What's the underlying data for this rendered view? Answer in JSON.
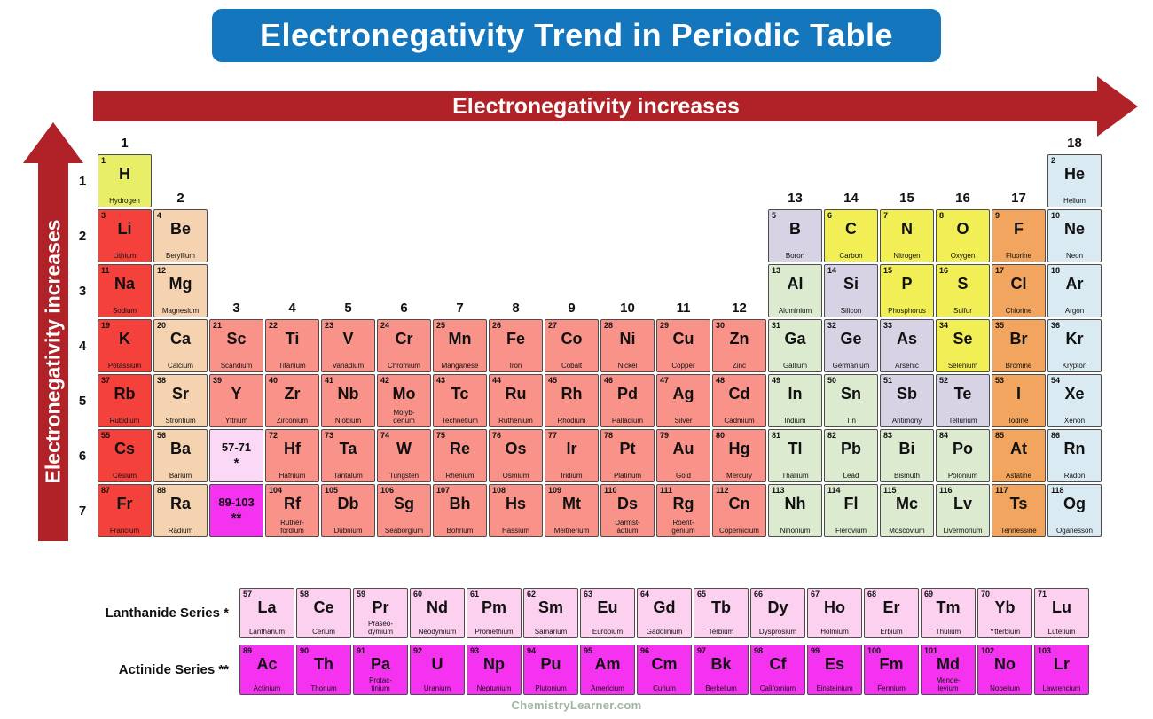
{
  "title": "Electronegativity Trend in Periodic Table",
  "arrows": {
    "horizontal": "Electronegativity increases",
    "vertical": "Electronegativity increases"
  },
  "footer": "ChemistryLearner.com",
  "series_labels": {
    "lanthanide": "Lanthanide Series *",
    "actinide": "Actinide Series **"
  },
  "colors": {
    "title_bg": "#1477bd",
    "arrow": "#b02128",
    "hydrogen": "#e8ee67",
    "alkali": "#f5413c",
    "alkaline": "#f6d3b0",
    "transition": "#f9938a",
    "post": "#dcead0",
    "metalloid": "#d7d2e4",
    "nonmetal": "#f1ef55",
    "halogen": "#f1a55e",
    "noble": "#d9eaf2",
    "lanthanide": "#fbd1ef",
    "actinide": "#f532f0",
    "placeholder_lan": "#fbd9f6",
    "placeholder_act": "#f532f0"
  },
  "period_labels": [
    "1",
    "2",
    "3",
    "4",
    "5",
    "6",
    "7"
  ],
  "group_labels": [
    {
      "label": "1",
      "row": 0,
      "col": 1
    },
    {
      "label": "2",
      "row": 1,
      "col": 2
    },
    {
      "label": "3",
      "row": 3,
      "col": 3
    },
    {
      "label": "4",
      "row": 3,
      "col": 4
    },
    {
      "label": "5",
      "row": 3,
      "col": 5
    },
    {
      "label": "6",
      "row": 3,
      "col": 6
    },
    {
      "label": "7",
      "row": 3,
      "col": 7
    },
    {
      "label": "8",
      "row": 3,
      "col": 8
    },
    {
      "label": "9",
      "row": 3,
      "col": 9
    },
    {
      "label": "10",
      "row": 3,
      "col": 10
    },
    {
      "label": "11",
      "row": 3,
      "col": 11
    },
    {
      "label": "12",
      "row": 3,
      "col": 12
    },
    {
      "label": "13",
      "row": 1,
      "col": 13
    },
    {
      "label": "14",
      "row": 1,
      "col": 14
    },
    {
      "label": "15",
      "row": 1,
      "col": 15
    },
    {
      "label": "16",
      "row": 1,
      "col": 16
    },
    {
      "label": "17",
      "row": 1,
      "col": 17
    },
    {
      "label": "18",
      "row": 0,
      "col": 18
    }
  ],
  "placeholders": [
    {
      "label": "57-71",
      "mark": "*",
      "r": 6,
      "c": 3,
      "cat": "placeholder_lan"
    },
    {
      "label": "89-103",
      "mark": "**",
      "r": 7,
      "c": 3,
      "cat": "placeholder_act"
    }
  ],
  "elements": [
    {
      "n": 1,
      "s": "H",
      "name": "Hydrogen",
      "r": 1,
      "c": 1,
      "cat": "hydrogen"
    },
    {
      "n": 2,
      "s": "He",
      "name": "Helium",
      "r": 1,
      "c": 18,
      "cat": "noble"
    },
    {
      "n": 3,
      "s": "Li",
      "name": "Lithium",
      "r": 2,
      "c": 1,
      "cat": "alkali"
    },
    {
      "n": 4,
      "s": "Be",
      "name": "Beryllium",
      "r": 2,
      "c": 2,
      "cat": "alkaline"
    },
    {
      "n": 5,
      "s": "B",
      "name": "Boron",
      "r": 2,
      "c": 13,
      "cat": "metalloid"
    },
    {
      "n": 6,
      "s": "C",
      "name": "Carbon",
      "r": 2,
      "c": 14,
      "cat": "nonmetal"
    },
    {
      "n": 7,
      "s": "N",
      "name": "Nitrogen",
      "r": 2,
      "c": 15,
      "cat": "nonmetal"
    },
    {
      "n": 8,
      "s": "O",
      "name": "Oxygen",
      "r": 2,
      "c": 16,
      "cat": "nonmetal"
    },
    {
      "n": 9,
      "s": "F",
      "name": "Fluorine",
      "r": 2,
      "c": 17,
      "cat": "halogen"
    },
    {
      "n": 10,
      "s": "Ne",
      "name": "Neon",
      "r": 2,
      "c": 18,
      "cat": "noble"
    },
    {
      "n": 11,
      "s": "Na",
      "name": "Sodium",
      "r": 3,
      "c": 1,
      "cat": "alkali"
    },
    {
      "n": 12,
      "s": "Mg",
      "name": "Magnesium",
      "r": 3,
      "c": 2,
      "cat": "alkaline"
    },
    {
      "n": 13,
      "s": "Al",
      "name": "Aluminium",
      "r": 3,
      "c": 13,
      "cat": "post"
    },
    {
      "n": 14,
      "s": "Si",
      "name": "Silicon",
      "r": 3,
      "c": 14,
      "cat": "metalloid"
    },
    {
      "n": 15,
      "s": "P",
      "name": "Phosphorus",
      "r": 3,
      "c": 15,
      "cat": "nonmetal"
    },
    {
      "n": 16,
      "s": "S",
      "name": "Sulfur",
      "r": 3,
      "c": 16,
      "cat": "nonmetal"
    },
    {
      "n": 17,
      "s": "Cl",
      "name": "Chlorine",
      "r": 3,
      "c": 17,
      "cat": "halogen"
    },
    {
      "n": 18,
      "s": "Ar",
      "name": "Argon",
      "r": 3,
      "c": 18,
      "cat": "noble"
    },
    {
      "n": 19,
      "s": "K",
      "name": "Potassium",
      "r": 4,
      "c": 1,
      "cat": "alkali"
    },
    {
      "n": 20,
      "s": "Ca",
      "name": "Calcium",
      "r": 4,
      "c": 2,
      "cat": "alkaline"
    },
    {
      "n": 21,
      "s": "Sc",
      "name": "Scandium",
      "r": 4,
      "c": 3,
      "cat": "transition"
    },
    {
      "n": 22,
      "s": "Ti",
      "name": "Titanium",
      "r": 4,
      "c": 4,
      "cat": "transition"
    },
    {
      "n": 23,
      "s": "V",
      "name": "Vanadium",
      "r": 4,
      "c": 5,
      "cat": "transition"
    },
    {
      "n": 24,
      "s": "Cr",
      "name": "Chromium",
      "r": 4,
      "c": 6,
      "cat": "transition"
    },
    {
      "n": 25,
      "s": "Mn",
      "name": "Manganese",
      "r": 4,
      "c": 7,
      "cat": "transition"
    },
    {
      "n": 26,
      "s": "Fe",
      "name": "Iron",
      "r": 4,
      "c": 8,
      "cat": "transition"
    },
    {
      "n": 27,
      "s": "Co",
      "name": "Cobalt",
      "r": 4,
      "c": 9,
      "cat": "transition"
    },
    {
      "n": 28,
      "s": "Ni",
      "name": "Nickel",
      "r": 4,
      "c": 10,
      "cat": "transition"
    },
    {
      "n": 29,
      "s": "Cu",
      "name": "Copper",
      "r": 4,
      "c": 11,
      "cat": "transition"
    },
    {
      "n": 30,
      "s": "Zn",
      "name": "Zinc",
      "r": 4,
      "c": 12,
      "cat": "transition"
    },
    {
      "n": 31,
      "s": "Ga",
      "name": "Gallium",
      "r": 4,
      "c": 13,
      "cat": "post"
    },
    {
      "n": 32,
      "s": "Ge",
      "name": "Germanium",
      "r": 4,
      "c": 14,
      "cat": "metalloid"
    },
    {
      "n": 33,
      "s": "As",
      "name": "Arsenic",
      "r": 4,
      "c": 15,
      "cat": "metalloid"
    },
    {
      "n": 34,
      "s": "Se",
      "name": "Selenium",
      "r": 4,
      "c": 16,
      "cat": "nonmetal"
    },
    {
      "n": 35,
      "s": "Br",
      "name": "Bromine",
      "r": 4,
      "c": 17,
      "cat": "halogen"
    },
    {
      "n": 36,
      "s": "Kr",
      "name": "Krypton",
      "r": 4,
      "c": 18,
      "cat": "noble"
    },
    {
      "n": 37,
      "s": "Rb",
      "name": "Rubidium",
      "r": 5,
      "c": 1,
      "cat": "alkali"
    },
    {
      "n": 38,
      "s": "Sr",
      "name": "Strontium",
      "r": 5,
      "c": 2,
      "cat": "alkaline"
    },
    {
      "n": 39,
      "s": "Y",
      "name": "Yttrium",
      "r": 5,
      "c": 3,
      "cat": "transition"
    },
    {
      "n": 40,
      "s": "Zr",
      "name": "Zirconium",
      "r": 5,
      "c": 4,
      "cat": "transition"
    },
    {
      "n": 41,
      "s": "Nb",
      "name": "Niobium",
      "r": 5,
      "c": 5,
      "cat": "transition"
    },
    {
      "n": 42,
      "s": "Mo",
      "name": "Molyb-\ndenum",
      "r": 5,
      "c": 6,
      "cat": "transition"
    },
    {
      "n": 43,
      "s": "Tc",
      "name": "Technetium",
      "r": 5,
      "c": 7,
      "cat": "transition"
    },
    {
      "n": 44,
      "s": "Ru",
      "name": "Ruthenium",
      "r": 5,
      "c": 8,
      "cat": "transition"
    },
    {
      "n": 45,
      "s": "Rh",
      "name": "Rhodium",
      "r": 5,
      "c": 9,
      "cat": "transition"
    },
    {
      "n": 46,
      "s": "Pd",
      "name": "Palladium",
      "r": 5,
      "c": 10,
      "cat": "transition"
    },
    {
      "n": 47,
      "s": "Ag",
      "name": "Silver",
      "r": 5,
      "c": 11,
      "cat": "transition"
    },
    {
      "n": 48,
      "s": "Cd",
      "name": "Cadmium",
      "r": 5,
      "c": 12,
      "cat": "transition"
    },
    {
      "n": 49,
      "s": "In",
      "name": "Indium",
      "r": 5,
      "c": 13,
      "cat": "post"
    },
    {
      "n": 50,
      "s": "Sn",
      "name": "Tin",
      "r": 5,
      "c": 14,
      "cat": "post"
    },
    {
      "n": 51,
      "s": "Sb",
      "name": "Antimony",
      "r": 5,
      "c": 15,
      "cat": "metalloid"
    },
    {
      "n": 52,
      "s": "Te",
      "name": "Tellurium",
      "r": 5,
      "c": 16,
      "cat": "metalloid"
    },
    {
      "n": 53,
      "s": "I",
      "name": "Iodine",
      "r": 5,
      "c": 17,
      "cat": "halogen"
    },
    {
      "n": 54,
      "s": "Xe",
      "name": "Xenon",
      "r": 5,
      "c": 18,
      "cat": "noble"
    },
    {
      "n": 55,
      "s": "Cs",
      "name": "Cesium",
      "r": 6,
      "c": 1,
      "cat": "alkali"
    },
    {
      "n": 56,
      "s": "Ba",
      "name": "Barium",
      "r": 6,
      "c": 2,
      "cat": "alkaline"
    },
    {
      "n": 72,
      "s": "Hf",
      "name": "Hafnium",
      "r": 6,
      "c": 4,
      "cat": "transition"
    },
    {
      "n": 73,
      "s": "Ta",
      "name": "Tantalum",
      "r": 6,
      "c": 5,
      "cat": "transition"
    },
    {
      "n": 74,
      "s": "W",
      "name": "Tungsten",
      "r": 6,
      "c": 6,
      "cat": "transition"
    },
    {
      "n": 75,
      "s": "Re",
      "name": "Rhenium",
      "r": 6,
      "c": 7,
      "cat": "transition"
    },
    {
      "n": 76,
      "s": "Os",
      "name": "Osmium",
      "r": 6,
      "c": 8,
      "cat": "transition"
    },
    {
      "n": 77,
      "s": "Ir",
      "name": "Iridium",
      "r": 6,
      "c": 9,
      "cat": "transition"
    },
    {
      "n": 78,
      "s": "Pt",
      "name": "Platinum",
      "r": 6,
      "c": 10,
      "cat": "transition"
    },
    {
      "n": 79,
      "s": "Au",
      "name": "Gold",
      "r": 6,
      "c": 11,
      "cat": "transition"
    },
    {
      "n": 80,
      "s": "Hg",
      "name": "Mercury",
      "r": 6,
      "c": 12,
      "cat": "transition"
    },
    {
      "n": 81,
      "s": "Tl",
      "name": "Thallium",
      "r": 6,
      "c": 13,
      "cat": "post"
    },
    {
      "n": 82,
      "s": "Pb",
      "name": "Lead",
      "r": 6,
      "c": 14,
      "cat": "post"
    },
    {
      "n": 83,
      "s": "Bi",
      "name": "Bismuth",
      "r": 6,
      "c": 15,
      "cat": "post"
    },
    {
      "n": 84,
      "s": "Po",
      "name": "Polonium",
      "r": 6,
      "c": 16,
      "cat": "post"
    },
    {
      "n": 85,
      "s": "At",
      "name": "Astatine",
      "r": 6,
      "c": 17,
      "cat": "halogen"
    },
    {
      "n": 86,
      "s": "Rn",
      "name": "Radon",
      "r": 6,
      "c": 18,
      "cat": "noble"
    },
    {
      "n": 87,
      "s": "Fr",
      "name": "Francium",
      "r": 7,
      "c": 1,
      "cat": "alkali"
    },
    {
      "n": 88,
      "s": "Ra",
      "name": "Radium",
      "r": 7,
      "c": 2,
      "cat": "alkaline"
    },
    {
      "n": 104,
      "s": "Rf",
      "name": "Ruther-\nfordium",
      "r": 7,
      "c": 4,
      "cat": "transition"
    },
    {
      "n": 105,
      "s": "Db",
      "name": "Dubnium",
      "r": 7,
      "c": 5,
      "cat": "transition"
    },
    {
      "n": 106,
      "s": "Sg",
      "name": "Seaborgium",
      "r": 7,
      "c": 6,
      "cat": "transition"
    },
    {
      "n": 107,
      "s": "Bh",
      "name": "Bohrium",
      "r": 7,
      "c": 7,
      "cat": "transition"
    },
    {
      "n": 108,
      "s": "Hs",
      "name": "Hassium",
      "r": 7,
      "c": 8,
      "cat": "transition"
    },
    {
      "n": 109,
      "s": "Mt",
      "name": "Meitnerium",
      "r": 7,
      "c": 9,
      "cat": "transition"
    },
    {
      "n": 110,
      "s": "Ds",
      "name": "Darmst-\nadtium",
      "r": 7,
      "c": 10,
      "cat": "transition"
    },
    {
      "n": 111,
      "s": "Rg",
      "name": "Roent-\ngenium",
      "r": 7,
      "c": 11,
      "cat": "transition"
    },
    {
      "n": 112,
      "s": "Cn",
      "name": "Copernicium",
      "r": 7,
      "c": 12,
      "cat": "transition"
    },
    {
      "n": 113,
      "s": "Nh",
      "name": "Nihonium",
      "r": 7,
      "c": 13,
      "cat": "post"
    },
    {
      "n": 114,
      "s": "Fl",
      "name": "Flerovium",
      "r": 7,
      "c": 14,
      "cat": "post"
    },
    {
      "n": 115,
      "s": "Mc",
      "name": "Moscovium",
      "r": 7,
      "c": 15,
      "cat": "post"
    },
    {
      "n": 116,
      "s": "Lv",
      "name": "Livermorium",
      "r": 7,
      "c": 16,
      "cat": "post"
    },
    {
      "n": 117,
      "s": "Ts",
      "name": "Tennessine",
      "r": 7,
      "c": 17,
      "cat": "halogen"
    },
    {
      "n": 118,
      "s": "Og",
      "name": "Oganesson",
      "r": 7,
      "c": 18,
      "cat": "noble"
    }
  ],
  "lanthanides": [
    {
      "n": 57,
      "s": "La",
      "name": "Lanthanum",
      "cat": "lanthanide"
    },
    {
      "n": 58,
      "s": "Ce",
      "name": "Cerium",
      "cat": "lanthanide"
    },
    {
      "n": 59,
      "s": "Pr",
      "name": "Praseo-\ndymium",
      "cat": "lanthanide"
    },
    {
      "n": 60,
      "s": "Nd",
      "name": "Neodymium",
      "cat": "lanthanide"
    },
    {
      "n": 61,
      "s": "Pm",
      "name": "Promethium",
      "cat": "lanthanide"
    },
    {
      "n": 62,
      "s": "Sm",
      "name": "Samarium",
      "cat": "lanthanide"
    },
    {
      "n": 63,
      "s": "Eu",
      "name": "Europium",
      "cat": "lanthanide"
    },
    {
      "n": 64,
      "s": "Gd",
      "name": "Gadolinium",
      "cat": "lanthanide"
    },
    {
      "n": 65,
      "s": "Tb",
      "name": "Terbium",
      "cat": "lanthanide"
    },
    {
      "n": 66,
      "s": "Dy",
      "name": "Dysprosium",
      "cat": "lanthanide"
    },
    {
      "n": 67,
      "s": "Ho",
      "name": "Holmium",
      "cat": "lanthanide"
    },
    {
      "n": 68,
      "s": "Er",
      "name": "Erbium",
      "cat": "lanthanide"
    },
    {
      "n": 69,
      "s": "Tm",
      "name": "Thulium",
      "cat": "lanthanide"
    },
    {
      "n": 70,
      "s": "Yb",
      "name": "Ytterbium",
      "cat": "lanthanide"
    },
    {
      "n": 71,
      "s": "Lu",
      "name": "Lutetium",
      "cat": "lanthanide"
    }
  ],
  "actinides": [
    {
      "n": 89,
      "s": "Ac",
      "name": "Actinium",
      "cat": "actinide"
    },
    {
      "n": 90,
      "s": "Th",
      "name": "Thorium",
      "cat": "actinide"
    },
    {
      "n": 91,
      "s": "Pa",
      "name": "Protac-\ntinium",
      "cat": "actinide"
    },
    {
      "n": 92,
      "s": "U",
      "name": "Uranium",
      "cat": "actinide"
    },
    {
      "n": 93,
      "s": "Np",
      "name": "Neptunium",
      "cat": "actinide"
    },
    {
      "n": 94,
      "s": "Pu",
      "name": "Plutonium",
      "cat": "actinide"
    },
    {
      "n": 95,
      "s": "Am",
      "name": "Americium",
      "cat": "actinide"
    },
    {
      "n": 96,
      "s": "Cm",
      "name": "Curium",
      "cat": "actinide"
    },
    {
      "n": 97,
      "s": "Bk",
      "name": "Berkelium",
      "cat": "actinide"
    },
    {
      "n": 98,
      "s": "Cf",
      "name": "Californium",
      "cat": "actinide"
    },
    {
      "n": 99,
      "s": "Es",
      "name": "Einsteinium",
      "cat": "actinide"
    },
    {
      "n": 100,
      "s": "Fm",
      "name": "Fermium",
      "cat": "actinide"
    },
    {
      "n": 101,
      "s": "Md",
      "name": "Mende-\nlevium",
      "cat": "actinide"
    },
    {
      "n": 102,
      "s": "No",
      "name": "Nobelium",
      "cat": "actinide"
    },
    {
      "n": 103,
      "s": "Lr",
      "name": "Lawrencium",
      "cat": "actinide"
    }
  ]
}
